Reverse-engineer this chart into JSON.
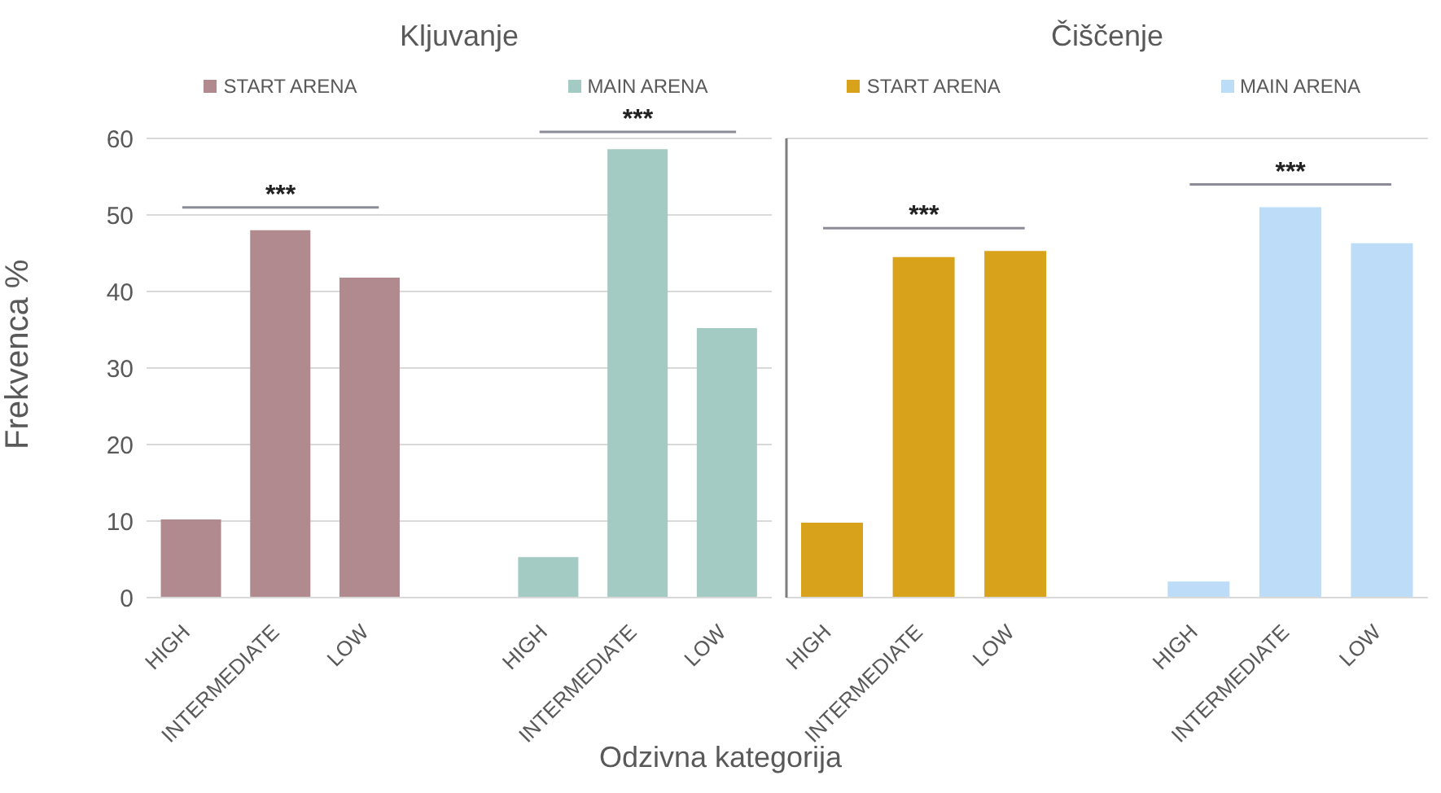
{
  "chart_data": [
    {
      "type": "bar",
      "stacked": true,
      "title": "Kljuvanje",
      "categories": [
        "HIGH",
        "INTERMEDIATE",
        "LOW",
        null,
        "HIGH",
        "INTERMEDIATE",
        "LOW"
      ],
      "series": [
        {
          "name": "START ARENA",
          "color": "#b08a8e",
          "values": [
            10.2,
            48,
            41.8,
            null,
            null,
            null,
            null
          ]
        },
        {
          "name": "MAIN ARENA",
          "color": "#a3cbc3",
          "values": [
            null,
            null,
            null,
            null,
            5.3,
            58.6,
            35.2
          ]
        }
      ],
      "xlabel": "Odzivna kategorija",
      "ylabel": "Frekvenca %",
      "ylim": [
        0,
        60
      ],
      "yticks": [
        0,
        10,
        20,
        30,
        40,
        50,
        60
      ],
      "grid": "y",
      "legend": "top",
      "annotations": [
        "***",
        "***"
      ]
    },
    {
      "type": "bar",
      "stacked": true,
      "title": "Čiščenje",
      "categories": [
        "HIGH",
        "INTERMEDIATE",
        "LOW",
        null,
        "HIGH",
        "INTERMEDIATE",
        "LOW"
      ],
      "series": [
        {
          "name": "START ARENA",
          "color": "#d9a21b",
          "values": [
            9.8,
            44.5,
            45.3,
            null,
            null,
            null,
            null
          ]
        },
        {
          "name": "MAIN ARENA",
          "color": "#bcdcf7",
          "values": [
            null,
            null,
            null,
            null,
            2.1,
            51,
            46.3
          ]
        }
      ],
      "ylim": [
        0,
        60
      ],
      "yticks": [
        0,
        10,
        20,
        30,
        40,
        50,
        60
      ],
      "grid": "y",
      "legend": "top",
      "tick_labels": "x",
      "annotations": [
        "***",
        "***"
      ]
    }
  ]
}
